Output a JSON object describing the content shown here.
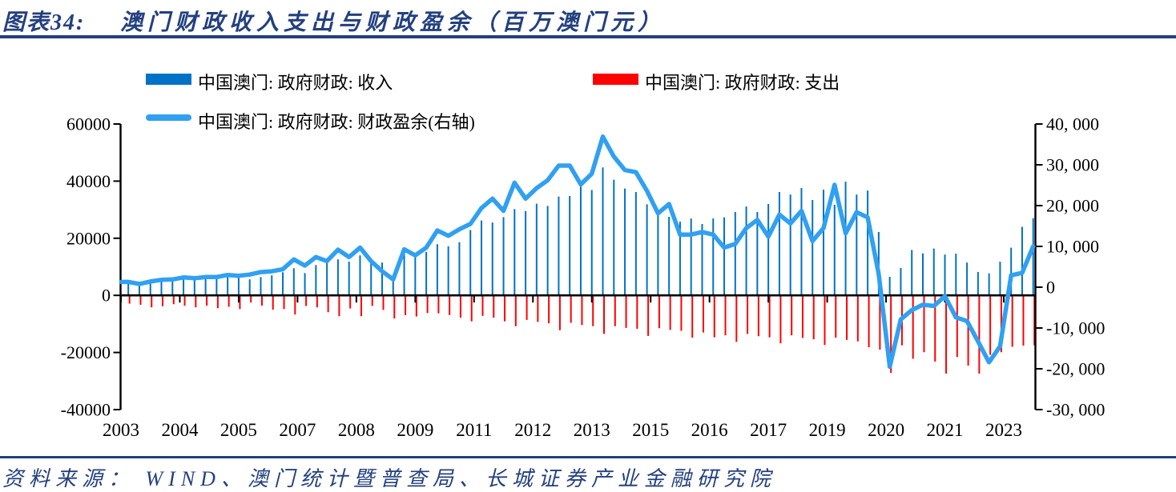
{
  "header": {
    "title_prefix": "图表34:",
    "title_text": "澳门财政收入支出与财政盈余（百万澳门元）"
  },
  "legend": [
    {
      "label": "中国澳门: 政府财政: 收入",
      "type": "bar",
      "color": "#0072C6"
    },
    {
      "label": "中国澳门: 政府财政: 支出",
      "type": "bar",
      "color": "#FF0000"
    },
    {
      "label": "中国澳门: 政府财政: 财政盈余(右轴)",
      "type": "line",
      "color": "#30A0F2"
    }
  ],
  "source": {
    "text": "资料来源：  WIND、澳门统计暨普查局、长城证券产业金融研究院"
  },
  "colors": {
    "navy": "#23407F",
    "revenue": "#0072C6",
    "expenditure": "#FF0000",
    "surplus": "#30A0F2",
    "axis": "#000000"
  },
  "chart_data": {
    "type": "bar",
    "subtype": "combo-bar-line",
    "title": "澳门财政收入支出与财政盈余（百万澳门元）",
    "x_unit": "quarter",
    "grid": false,
    "legend_position": "top",
    "quarters": [
      "2003Q1",
      "2003Q2",
      "2003Q3",
      "2003Q4",
      "2004Q1",
      "2004Q2",
      "2004Q3",
      "2004Q4",
      "2005Q1",
      "2005Q2",
      "2005Q3",
      "2005Q4",
      "2006Q1",
      "2006Q2",
      "2006Q3",
      "2006Q4",
      "2007Q1",
      "2007Q2",
      "2007Q3",
      "2007Q4",
      "2008Q1",
      "2008Q2",
      "2008Q3",
      "2008Q4",
      "2009Q1",
      "2009Q2",
      "2009Q3",
      "2009Q4",
      "2010Q1",
      "2010Q2",
      "2010Q3",
      "2010Q4",
      "2011Q1",
      "2011Q2",
      "2011Q3",
      "2011Q4",
      "2012Q1",
      "2012Q2",
      "2012Q3",
      "2012Q4",
      "2013Q1",
      "2013Q2",
      "2013Q3",
      "2013Q4",
      "2014Q1",
      "2014Q2",
      "2014Q3",
      "2014Q4",
      "2015Q1",
      "2015Q2",
      "2015Q3",
      "2015Q4",
      "2016Q1",
      "2016Q2",
      "2016Q3",
      "2016Q4",
      "2017Q1",
      "2017Q2",
      "2017Q3",
      "2017Q4",
      "2018Q1",
      "2018Q2",
      "2018Q3",
      "2018Q4",
      "2019Q1",
      "2019Q2",
      "2019Q3",
      "2019Q4",
      "2020Q1",
      "2020Q2",
      "2020Q3",
      "2020Q4",
      "2021Q1",
      "2021Q2",
      "2021Q3",
      "2021Q4",
      "2022Q1",
      "2022Q2",
      "2022Q3",
      "2022Q4",
      "2023Q1",
      "2023Q2",
      "2023Q3"
    ],
    "series": [
      {
        "name": "中国澳门: 政府财政: 收入",
        "type": "bar",
        "axis": "left",
        "color": "#0072C6",
        "values": [
          4200,
          4000,
          4700,
          4900,
          5600,
          6800,
          6400,
          6700,
          6100,
          6400,
          6200,
          5600,
          6400,
          7000,
          8100,
          9500,
          7800,
          10600,
          11500,
          12600,
          11800,
          14000,
          11800,
          11500,
          6200,
          16500,
          14000,
          15200,
          17900,
          17200,
          18600,
          22900,
          26200,
          25500,
          27400,
          30200,
          29500,
          32100,
          31300,
          34600,
          34800,
          38100,
          36900,
          44800,
          40500,
          37400,
          36200,
          31900,
          29800,
          27500,
          25800,
          26900,
          25000,
          26900,
          27300,
          29200,
          31100,
          29200,
          32000,
          36200,
          35300,
          37600,
          33400,
          37000,
          31700,
          39800,
          35300,
          36700,
          22200,
          6500,
          9600,
          15900,
          14700,
          16400,
          14300,
          14600,
          11500,
          8200,
          7700,
          11800,
          16700,
          24000,
          27000
        ]
      },
      {
        "name": "中国澳门: 政府财政: 支出",
        "type": "bar",
        "axis": "left",
        "color": "#FF0000",
        "values": [
          -2900,
          -3300,
          -4200,
          -3800,
          -3100,
          -3600,
          -4200,
          -3600,
          -4500,
          -4000,
          -4800,
          -2500,
          -3600,
          -5000,
          -4800,
          -6700,
          -3700,
          -4200,
          -5900,
          -7300,
          -4600,
          -7300,
          -3700,
          -5100,
          -8100,
          -6900,
          -7400,
          -6200,
          -6300,
          -6900,
          -7800,
          -9100,
          -7200,
          -7800,
          -9100,
          -10800,
          -8600,
          -9300,
          -9800,
          -12200,
          -9600,
          -10400,
          -10800,
          -13500,
          -10800,
          -11400,
          -11700,
          -14200,
          -11500,
          -12100,
          -12400,
          -14800,
          -13000,
          -14700,
          -14000,
          -16300,
          -13500,
          -14300,
          -14700,
          -16800,
          -14000,
          -14900,
          -15400,
          -17400,
          -14800,
          -15600,
          -16100,
          -18200,
          -19000,
          -27200,
          -17500,
          -22200,
          -19900,
          -23200,
          -27400,
          -21600,
          -24600,
          -27400,
          -20800,
          -19900,
          -18000,
          -17600,
          -17500
        ]
      },
      {
        "name": "中国澳门: 政府财政: 财政盈余(右轴)",
        "type": "line",
        "axis": "right",
        "color": "#30A0F2",
        "values": [
          1300,
          800,
          1400,
          1800,
          1900,
          2400,
          2200,
          2500,
          2500,
          3000,
          2800,
          3100,
          3700,
          3900,
          4400,
          6800,
          5300,
          7400,
          6400,
          9200,
          7400,
          9700,
          6400,
          3900,
          1900,
          9300,
          7800,
          9700,
          13900,
          12600,
          14200,
          15500,
          19400,
          21700,
          18700,
          25600,
          21700,
          24300,
          26200,
          29800,
          29800,
          25200,
          27800,
          36900,
          32000,
          28700,
          28200,
          23600,
          18100,
          20400,
          12900,
          12900,
          13500,
          12900,
          9700,
          10600,
          14500,
          16500,
          12400,
          17800,
          15600,
          18700,
          11300,
          14500,
          25100,
          13200,
          18400,
          17100,
          3200,
          -19500,
          -7900,
          -5600,
          -4300,
          -4600,
          -2200,
          -7400,
          -8300,
          -13300,
          -18400,
          -14500,
          2900,
          3500,
          10000
        ]
      }
    ],
    "left_axis": {
      "min": -40000,
      "max": 60000,
      "tick_labels": [
        "60000",
        "40000",
        "20000",
        "0",
        "-20000",
        "-40000"
      ]
    },
    "right_axis": {
      "min": -30000,
      "max": 40000,
      "tick_labels": [
        "40, 000",
        "30, 000",
        "20, 000",
        "10, 000",
        "0",
        "-10, 000",
        "-20, 000",
        "-30, 000"
      ]
    },
    "x_axis": {
      "labels": [
        "2003",
        "2004",
        "2005",
        "2007",
        "2008",
        "2009",
        "2011",
        "2012",
        "2013",
        "2015",
        "2016",
        "2017",
        "2019",
        "2020",
        "2021",
        "2023"
      ]
    }
  }
}
